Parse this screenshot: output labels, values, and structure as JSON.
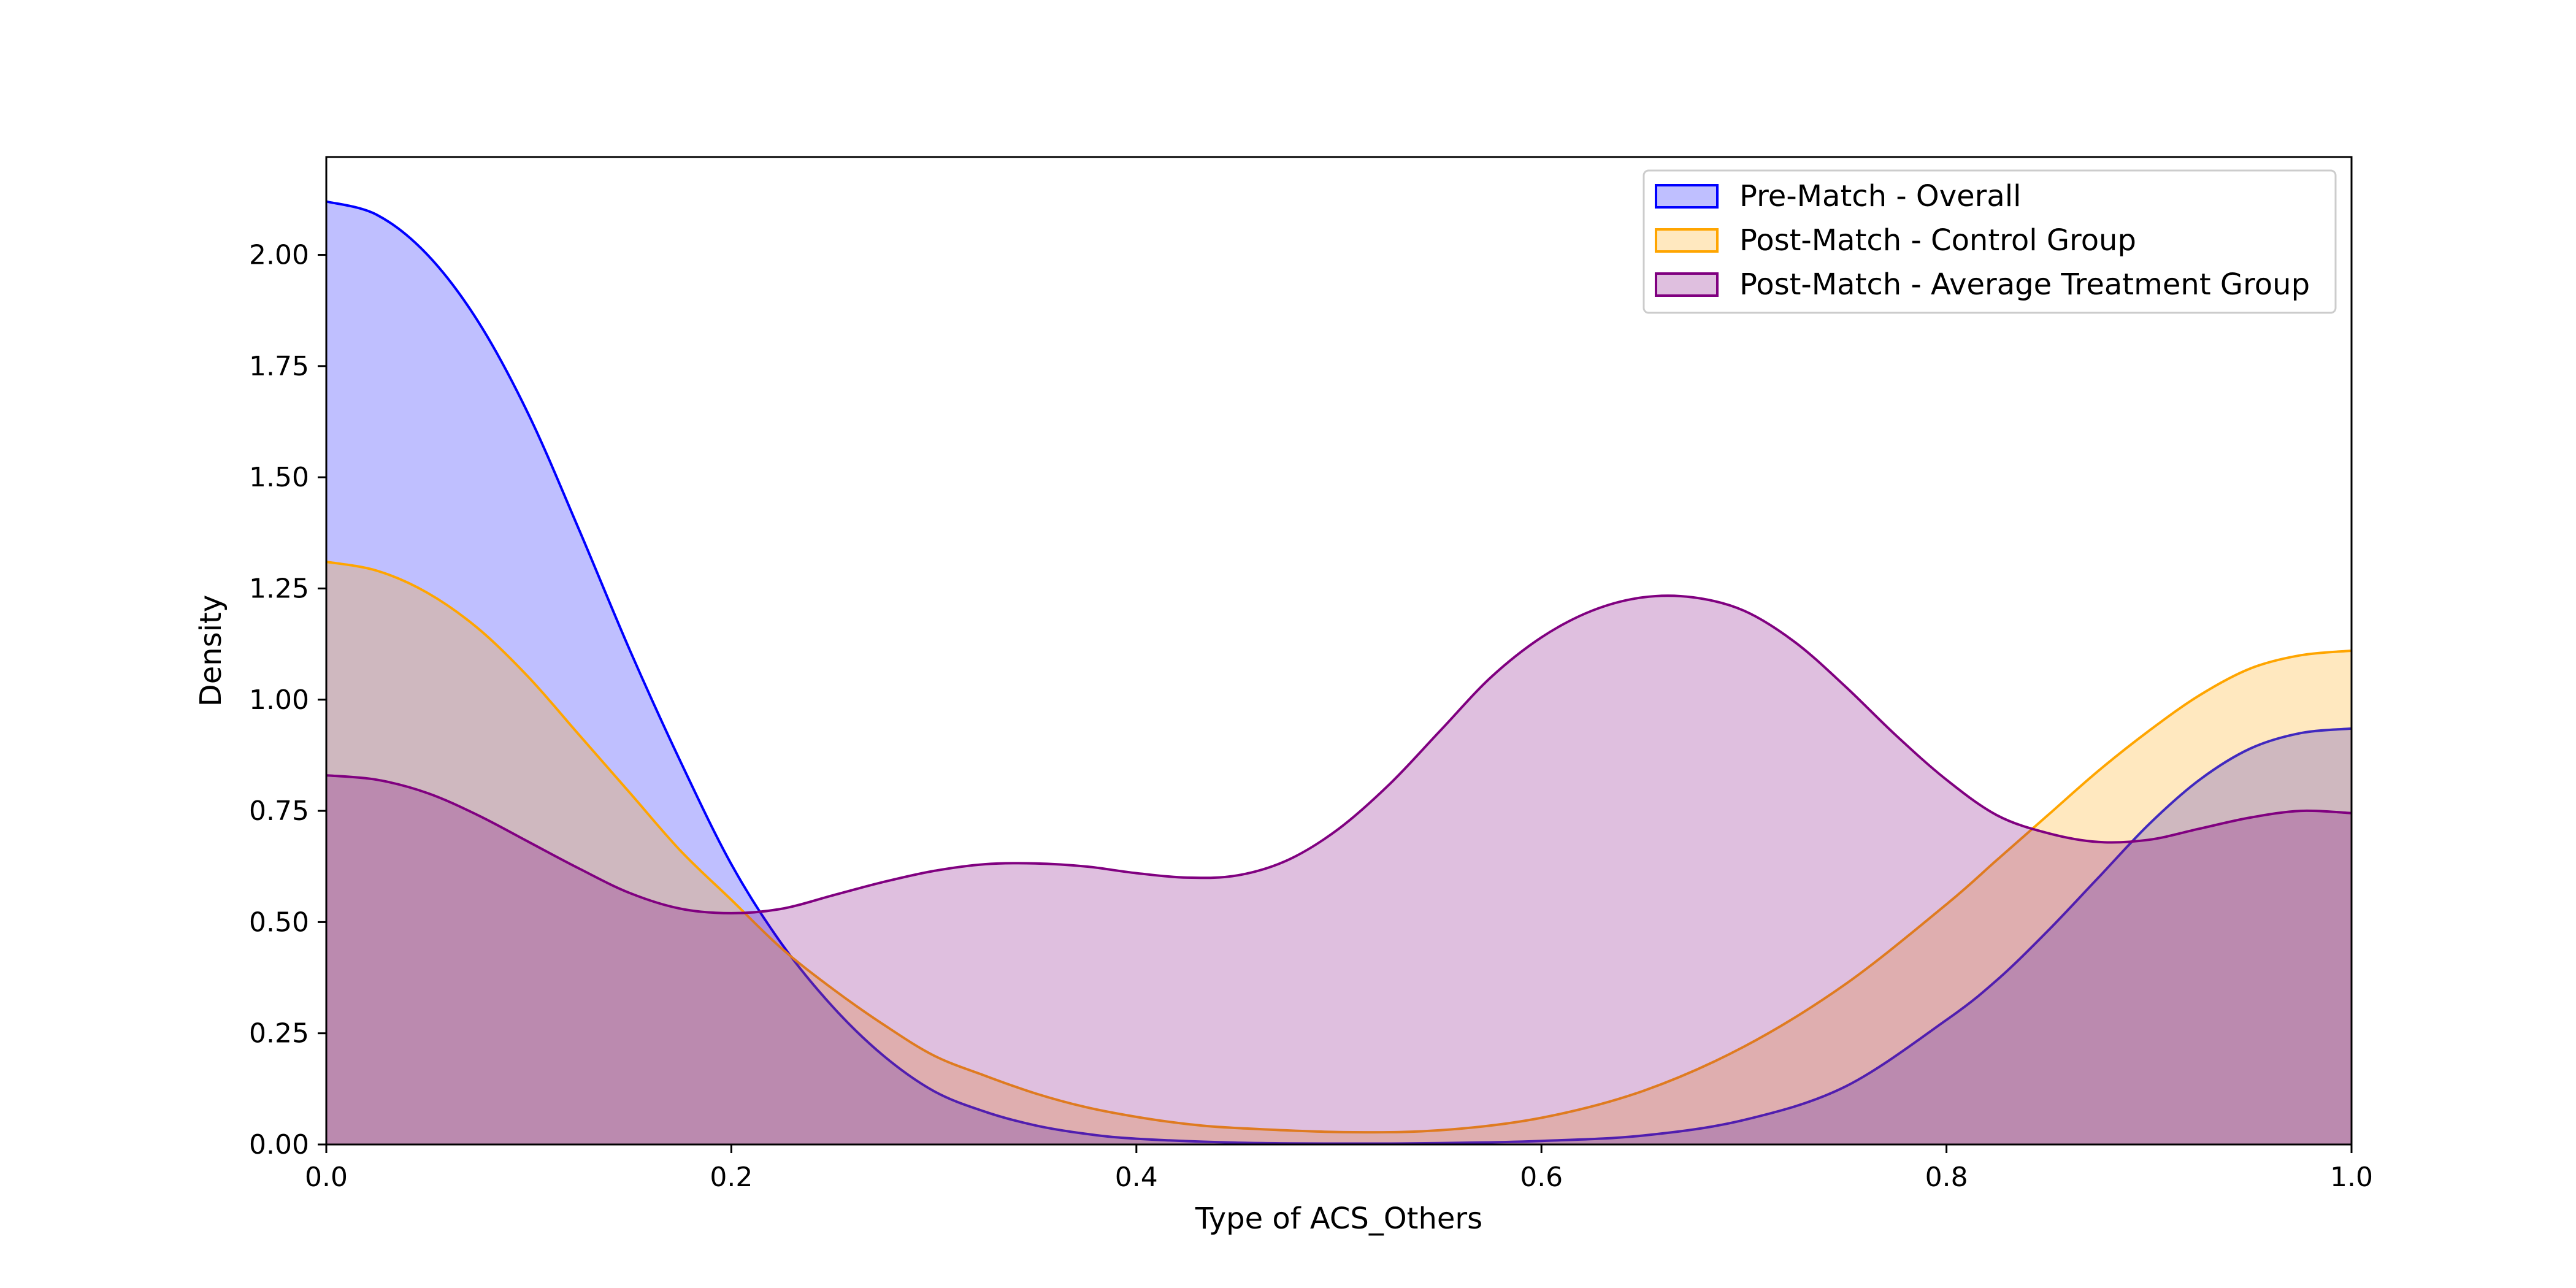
{
  "chart_data": {
    "type": "area",
    "title": "",
    "xlabel": "Type of ACS_Others",
    "ylabel": "Density",
    "xlim": [
      0.0,
      1.0
    ],
    "ylim": [
      0.0,
      2.22
    ],
    "x_ticks": [
      "0.0",
      "0.2",
      "0.4",
      "0.6",
      "0.8",
      "1.0"
    ],
    "y_ticks": [
      "0.00",
      "0.25",
      "0.50",
      "0.75",
      "1.00",
      "1.25",
      "1.50",
      "1.75",
      "2.00"
    ],
    "grid": false,
    "legend_position": "top-right",
    "series": [
      {
        "name": "Pre-Match - Overall",
        "color": "#0000ff",
        "fill": "#0000ff",
        "x": [
          0.0,
          0.025,
          0.05,
          0.075,
          0.1,
          0.125,
          0.15,
          0.175,
          0.2,
          0.225,
          0.25,
          0.275,
          0.3,
          0.325,
          0.35,
          0.375,
          0.4,
          0.45,
          0.5,
          0.55,
          0.6,
          0.65,
          0.7,
          0.75,
          0.8,
          0.825,
          0.85,
          0.875,
          0.9,
          0.925,
          0.95,
          0.975,
          1.0
        ],
        "values": [
          2.12,
          2.09,
          2.0,
          1.85,
          1.64,
          1.38,
          1.11,
          0.86,
          0.63,
          0.45,
          0.31,
          0.2,
          0.12,
          0.074,
          0.043,
          0.024,
          0.013,
          0.004,
          0.002,
          0.003,
          0.008,
          0.02,
          0.055,
          0.13,
          0.28,
          0.37,
          0.48,
          0.6,
          0.72,
          0.82,
          0.89,
          0.925,
          0.935
        ]
      },
      {
        "name": "Post-Match - Control Group",
        "color": "#ffa500",
        "fill": "#ffa500",
        "x": [
          0.0,
          0.025,
          0.05,
          0.075,
          0.1,
          0.125,
          0.15,
          0.175,
          0.2,
          0.225,
          0.25,
          0.275,
          0.3,
          0.325,
          0.35,
          0.375,
          0.4,
          0.425,
          0.45,
          0.5,
          0.55,
          0.6,
          0.65,
          0.7,
          0.75,
          0.8,
          0.825,
          0.85,
          0.875,
          0.9,
          0.925,
          0.95,
          0.975,
          1.0
        ],
        "values": [
          1.31,
          1.29,
          1.24,
          1.16,
          1.05,
          0.92,
          0.79,
          0.66,
          0.55,
          0.44,
          0.35,
          0.27,
          0.2,
          0.155,
          0.115,
          0.084,
          0.062,
          0.046,
          0.037,
          0.028,
          0.032,
          0.06,
          0.12,
          0.22,
          0.36,
          0.54,
          0.64,
          0.74,
          0.84,
          0.93,
          1.01,
          1.07,
          1.1,
          1.11
        ]
      },
      {
        "name": "Post-Match - Average Treatment Group",
        "color": "#800080",
        "fill": "#800080",
        "x": [
          0.0,
          0.025,
          0.05,
          0.075,
          0.1,
          0.125,
          0.15,
          0.175,
          0.2,
          0.225,
          0.25,
          0.275,
          0.3,
          0.325,
          0.35,
          0.375,
          0.4,
          0.425,
          0.45,
          0.475,
          0.5,
          0.525,
          0.55,
          0.575,
          0.6,
          0.625,
          0.65,
          0.675,
          0.7,
          0.725,
          0.75,
          0.775,
          0.8,
          0.825,
          0.85,
          0.875,
          0.9,
          0.925,
          0.95,
          0.975,
          1.0
        ],
        "values": [
          0.83,
          0.82,
          0.79,
          0.74,
          0.68,
          0.62,
          0.565,
          0.53,
          0.52,
          0.53,
          0.56,
          0.59,
          0.615,
          0.63,
          0.632,
          0.625,
          0.61,
          0.6,
          0.605,
          0.64,
          0.71,
          0.81,
          0.93,
          1.05,
          1.14,
          1.2,
          1.23,
          1.23,
          1.2,
          1.13,
          1.03,
          0.92,
          0.82,
          0.74,
          0.7,
          0.68,
          0.685,
          0.71,
          0.735,
          0.75,
          0.745
        ]
      }
    ]
  }
}
